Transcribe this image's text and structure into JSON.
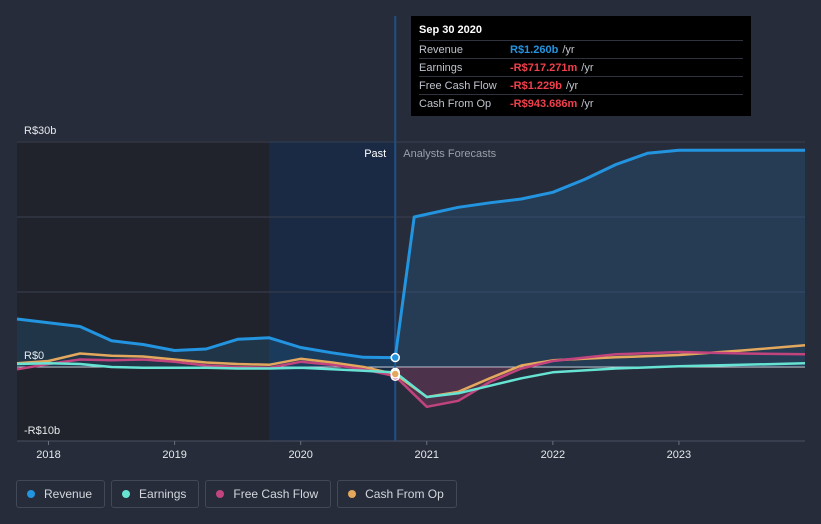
{
  "tooltip": {
    "date": "Sep 30 2020",
    "rows": [
      {
        "label": "Revenue",
        "value": "R$1.260b",
        "unit": "/yr",
        "color": "#2394e0"
      },
      {
        "label": "Earnings",
        "value": "-R$717.271m",
        "unit": "/yr",
        "color": "#f0404c"
      },
      {
        "label": "Free Cash Flow",
        "value": "-R$1.229b",
        "unit": "/yr",
        "color": "#f0404c"
      },
      {
        "label": "Cash From Op",
        "value": "-R$943.686m",
        "unit": "/yr",
        "color": "#f0404c"
      }
    ]
  },
  "legend": [
    {
      "label": "Revenue",
      "color": "#2394e0"
    },
    {
      "label": "Earnings",
      "color": "#66e3d3"
    },
    {
      "label": "Free Cash Flow",
      "color": "#c2447e"
    },
    {
      "label": "Cash From Op",
      "color": "#e3a85d"
    }
  ],
  "chart_data": {
    "type": "line",
    "y_tick_labels": [
      "R$30b",
      "R$0",
      "-R$10b"
    ],
    "ylim": [
      -10,
      30
    ],
    "x_tick_labels": [
      "2018",
      "2019",
      "2020",
      "2021",
      "2022",
      "2023"
    ],
    "xlim": [
      2017.75,
      2024.0
    ],
    "region_labels": {
      "past": "Past",
      "forecast": "Analysts Forecasts"
    },
    "split_x": 2020.75,
    "grid": true,
    "series": [
      {
        "name": "Revenue",
        "color": "#2394e0",
        "x": [
          2017.75,
          2018.0,
          2018.25,
          2018.5,
          2018.75,
          2019.0,
          2019.25,
          2019.5,
          2019.75,
          2020.0,
          2020.25,
          2020.5,
          2020.75,
          2020.9,
          2021.25,
          2021.5,
          2021.75,
          2022.0,
          2022.25,
          2022.5,
          2022.75,
          2023.0,
          2023.5,
          2024.0
        ],
        "y": [
          6.4,
          5.9,
          5.4,
          3.5,
          3.0,
          2.2,
          2.4,
          3.7,
          3.9,
          2.6,
          1.9,
          1.3,
          1.26,
          20.0,
          21.3,
          21.9,
          22.4,
          23.3,
          25.0,
          27.0,
          28.5,
          28.9,
          28.9,
          28.9
        ]
      },
      {
        "name": "Earnings",
        "color": "#66e3d3",
        "x": [
          2017.75,
          2018.0,
          2018.25,
          2018.5,
          2018.75,
          2019.0,
          2019.25,
          2019.5,
          2019.75,
          2020.0,
          2020.25,
          2020.5,
          2020.75,
          2021.0,
          2021.25,
          2021.5,
          2021.75,
          2022.0,
          2022.5,
          2023.0,
          2023.5,
          2024.0
        ],
        "y": [
          0.4,
          0.5,
          0.4,
          0.0,
          -0.1,
          -0.1,
          -0.1,
          -0.2,
          -0.2,
          -0.1,
          -0.3,
          -0.5,
          -0.72,
          -4.0,
          -3.5,
          -2.5,
          -1.5,
          -0.7,
          -0.2,
          0.1,
          0.3,
          0.5
        ]
      },
      {
        "name": "Free Cash Flow",
        "color": "#c2447e",
        "x": [
          2017.75,
          2018.0,
          2018.25,
          2018.5,
          2018.75,
          2019.0,
          2019.25,
          2019.5,
          2019.75,
          2020.0,
          2020.25,
          2020.5,
          2020.75,
          2021.0,
          2021.25,
          2021.5,
          2021.75,
          2022.0,
          2022.5,
          2023.0,
          2023.5,
          2024.0
        ],
        "y": [
          -0.3,
          0.4,
          1.0,
          0.9,
          1.0,
          0.7,
          0.2,
          0.0,
          -0.1,
          0.7,
          0.3,
          -0.3,
          -1.229,
          -5.3,
          -4.5,
          -2.0,
          -0.2,
          0.8,
          1.7,
          2.0,
          1.8,
          1.7
        ]
      },
      {
        "name": "Cash From Op",
        "color": "#e3a85d",
        "x": [
          2017.75,
          2018.0,
          2018.25,
          2018.5,
          2018.75,
          2019.0,
          2019.25,
          2019.5,
          2019.75,
          2020.0,
          2020.25,
          2020.5,
          2020.75,
          2021.0,
          2021.25,
          2021.5,
          2021.75,
          2022.0,
          2022.5,
          2023.0,
          2023.5,
          2024.0
        ],
        "y": [
          0.5,
          0.8,
          1.8,
          1.5,
          1.4,
          1.0,
          0.6,
          0.4,
          0.3,
          1.1,
          0.6,
          0.0,
          -0.94,
          -4.0,
          -3.3,
          -1.5,
          0.2,
          0.9,
          1.3,
          1.6,
          2.2,
          2.9
        ]
      }
    ]
  }
}
